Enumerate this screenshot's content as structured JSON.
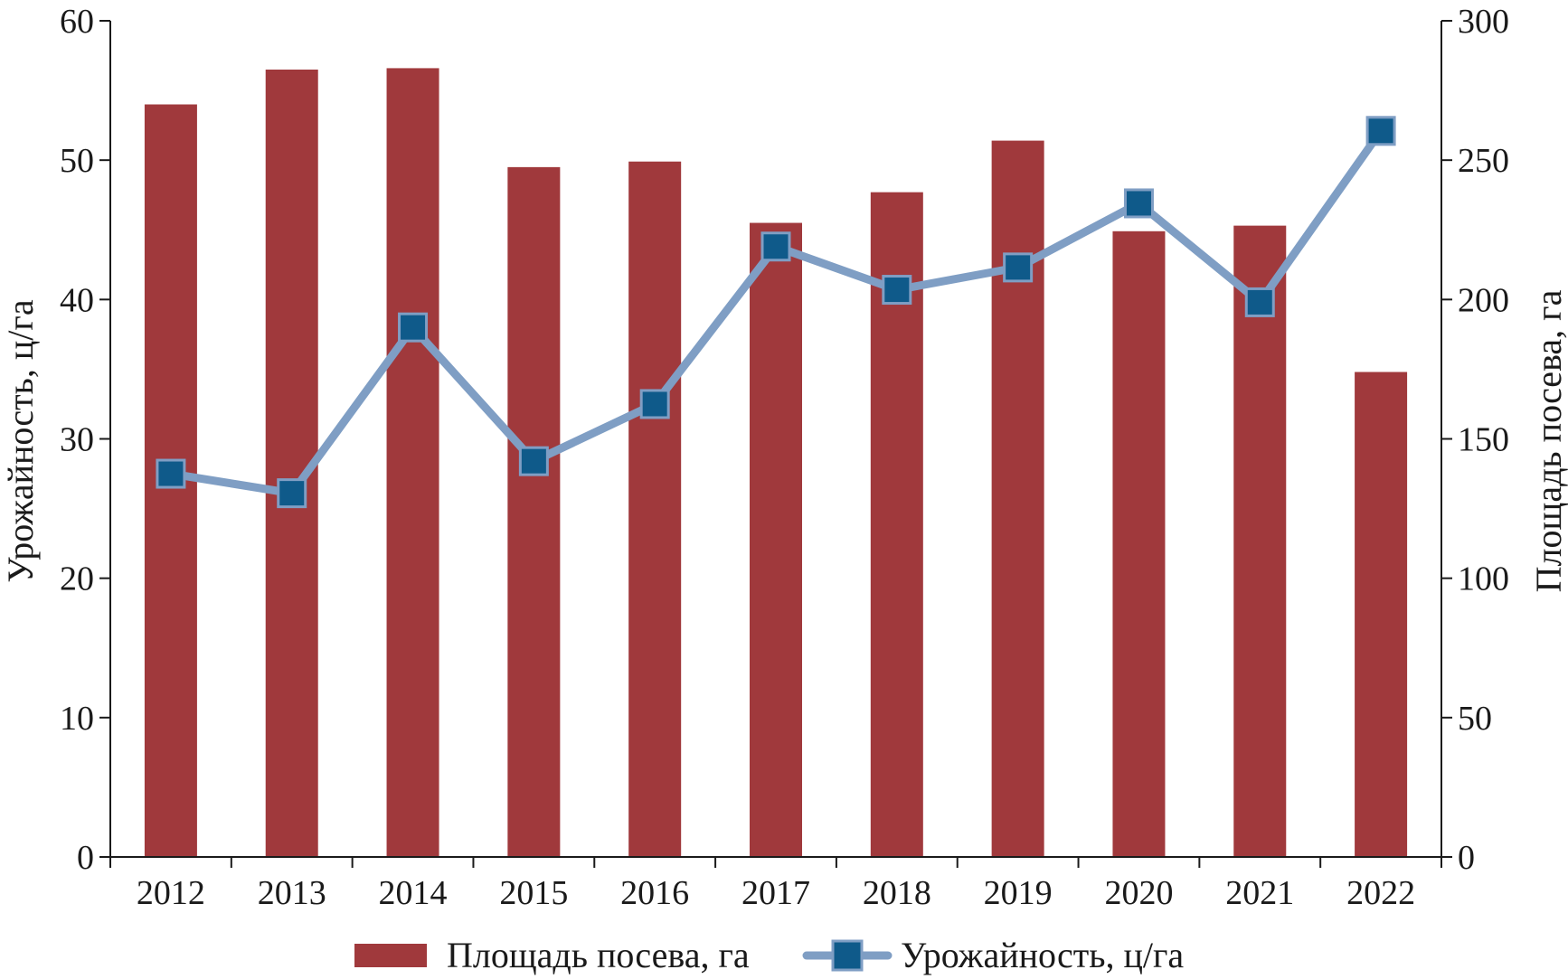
{
  "chart_data": {
    "type": "bar",
    "categories": [
      "2012",
      "2013",
      "2014",
      "2015",
      "2016",
      "2017",
      "2018",
      "2019",
      "2020",
      "2021",
      "2022"
    ],
    "series": [
      {
        "name": "Площадь посева, га",
        "type": "bar",
        "axis": "right",
        "color": "#a0393c",
        "values": [
          270,
          282.5,
          283,
          247.5,
          249.5,
          227.5,
          238.5,
          257,
          224.5,
          226.5,
          174
        ]
      },
      {
        "name": "Урожайность, ц/га",
        "type": "line",
        "axis": "left",
        "color": "#7f9ec4",
        "marker_color": "#0f5a8a",
        "values": [
          27.5,
          26.1,
          38.0,
          28.4,
          32.5,
          43.8,
          40.7,
          42.3,
          46.9,
          39.8,
          52.1
        ]
      }
    ],
    "y_left": {
      "label": "Урожайность, ц/га",
      "ylim": [
        0,
        60
      ],
      "ticks": [
        "0",
        "10",
        "20",
        "30",
        "40",
        "50",
        "60"
      ]
    },
    "y_right": {
      "label": "Площадь посева, га",
      "ylim": [
        0,
        300
      ],
      "ticks": [
        "0",
        "50",
        "100",
        "150",
        "200",
        "250",
        "300"
      ]
    },
    "grid": false,
    "legend": "bottom"
  }
}
